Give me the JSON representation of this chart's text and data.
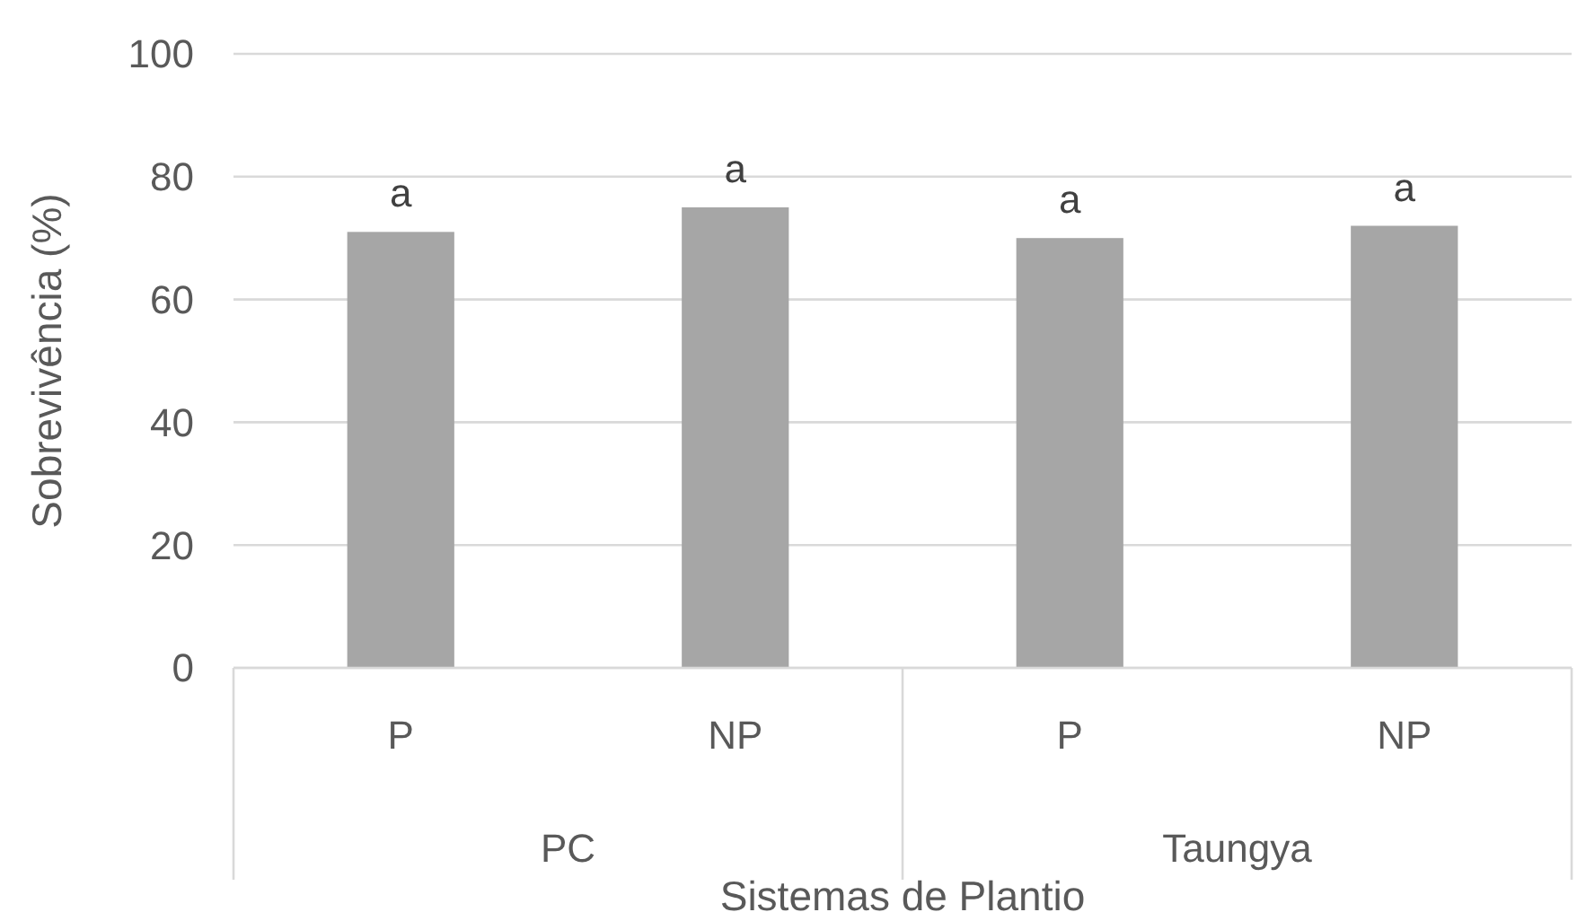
{
  "chart_data": {
    "type": "bar",
    "xlabel": "Sistemas de Plantio",
    "ylabel": "Sobrevivência (%)",
    "categories": [
      "P",
      "NP",
      "P",
      "NP"
    ],
    "values": [
      71,
      75,
      70,
      72
    ],
    "value_labels": [
      "a",
      "a",
      "a",
      "a"
    ],
    "color": "#a6a6a6",
    "ylim": [
      0,
      100
    ],
    "yticks": [
      0,
      20,
      40,
      60,
      80,
      100
    ],
    "grid": "y",
    "annotations": [
      "PC",
      "Taungya"
    ]
  }
}
